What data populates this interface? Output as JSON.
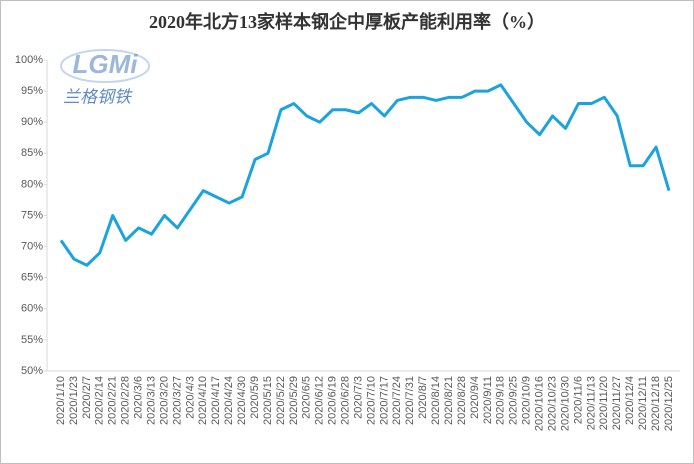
{
  "chart_data": {
    "type": "line",
    "title": "2020年北方13家样本钢企中厚板产能利用率（%）",
    "logo": "LGMi",
    "logo_subtitle": "兰格钢铁",
    "categories": [
      "2020/1/10",
      "2020/1/23",
      "2020/2/7",
      "2020/2/14",
      "2020/2/21",
      "2020/2/28",
      "2020/3/6",
      "2020/3/13",
      "2020/3/20",
      "2020/3/27",
      "2020/4/3",
      "2020/4/10",
      "2020/4/17",
      "2020/4/24",
      "2020/4/30",
      "2020/5/9",
      "2020/5/15",
      "2020/5/22",
      "2020/5/29",
      "2020/6/5",
      "2020/6/12",
      "2020/6/19",
      "2020/6/28",
      "2020/7/3",
      "2020/7/10",
      "2020/7/17",
      "2020/7/24",
      "2020/7/31",
      "2020/8/7",
      "2020/8/14",
      "2020/8/21",
      "2020/8/28",
      "2020/9/4",
      "2020/9/11",
      "2020/9/18",
      "2020/9/25",
      "2020/10/9",
      "2020/10/16",
      "2020/10/23",
      "2020/10/30",
      "2020/11/6",
      "2020/11/13",
      "2020/11/20",
      "2020/11/27",
      "2020/12/4",
      "2020/12/11",
      "2020/12/18",
      "2020/12/25"
    ],
    "values": [
      71,
      68,
      67,
      69,
      75,
      71,
      73,
      72,
      75,
      73,
      76,
      79,
      78,
      77,
      78,
      84,
      85,
      92,
      93,
      91,
      90,
      92,
      92,
      91.5,
      93,
      91,
      93.5,
      94,
      94,
      93.5,
      94,
      94,
      95,
      95,
      96,
      93,
      90,
      88,
      91,
      89,
      93,
      93,
      94,
      91,
      83,
      83,
      86,
      79
    ],
    "color": "#1ba3de",
    "ylim": [
      50,
      100
    ],
    "yticks": [
      {
        "value": 50,
        "label": "50%"
      },
      {
        "value": 55,
        "label": "55%"
      },
      {
        "value": 60,
        "label": "60%"
      },
      {
        "value": 65,
        "label": "65%"
      },
      {
        "value": 70,
        "label": "70%"
      },
      {
        "value": 75,
        "label": "75%"
      },
      {
        "value": 80,
        "label": "80%"
      },
      {
        "value": 85,
        "label": "85%"
      },
      {
        "value": 90,
        "label": "90%"
      },
      {
        "value": 95,
        "label": "95%"
      },
      {
        "value": 100,
        "label": "100%"
      }
    ],
    "grid": false
  }
}
